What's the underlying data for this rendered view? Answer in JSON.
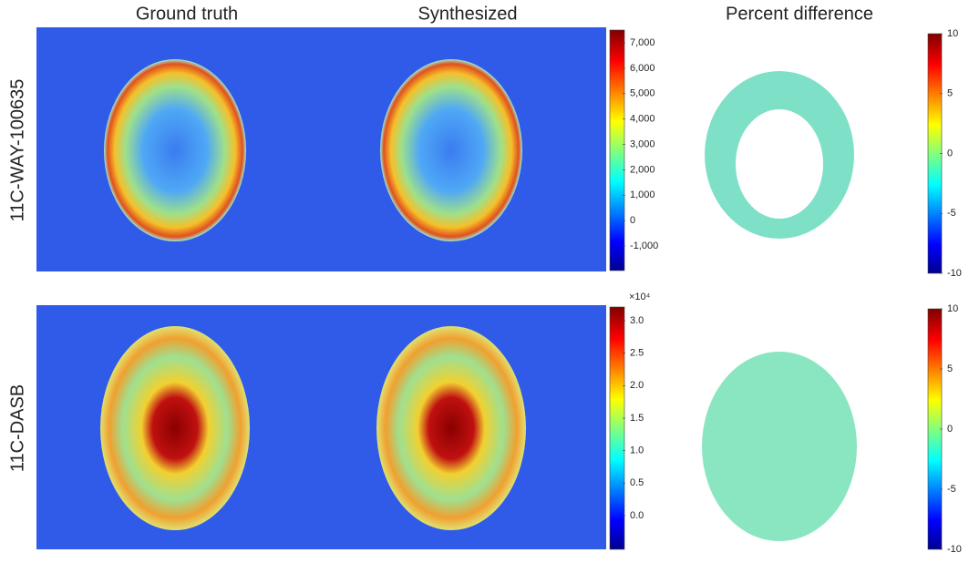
{
  "columns": [
    "Ground truth",
    "Synthesized",
    "Percent difference"
  ],
  "rows": [
    {
      "label": "11C-WAY-100635",
      "colorbar": {
        "ticks": [
          "7,000",
          "6,000",
          "5,000",
          "4,000",
          "3,000",
          "2,000",
          "1,000",
          "0",
          "-1,000"
        ]
      },
      "diff_colorbar": {
        "ticks": [
          "10",
          "5",
          "0",
          "-5",
          "-10"
        ]
      }
    },
    {
      "label": "11C-DASB",
      "colorbar": {
        "multiplier": "×10⁴",
        "ticks": [
          "3.0",
          "2.5",
          "2.0",
          "1.5",
          "1.0",
          "0.5",
          "0.0"
        ]
      },
      "diff_colorbar": {
        "ticks": [
          "10",
          "5",
          "0",
          "-5",
          "-10"
        ]
      }
    }
  ]
}
